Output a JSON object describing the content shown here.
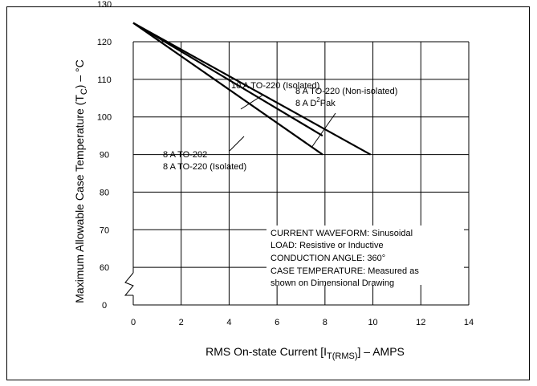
{
  "chart_data": {
    "type": "line",
    "title": "",
    "xlabel": {
      "prefix": "RMS On-state Current [I",
      "sub": "T(RMS)",
      "suffix": "] – AMPS"
    },
    "ylabel": {
      "prefix": "Maximum Allowable Case Temperature (T",
      "sub": "C",
      "suffix": ") – °C"
    },
    "xlim": [
      0,
      14
    ],
    "x_ticks": [
      "0",
      "2",
      "4",
      "6",
      "8",
      "10",
      "12",
      "14"
    ],
    "y_ticks": [
      "0",
      "60",
      "70",
      "80",
      "90",
      "100",
      "110",
      "120",
      "130"
    ],
    "y_axis_break": true,
    "grid": true,
    "series": [
      {
        "name": "10 A TO-220 (Isolated)",
        "points": [
          [
            0,
            125
          ],
          [
            9.9,
            90
          ]
        ]
      },
      {
        "name": "8 A TO-220 (Non-isolated) / 8 A D²Pak",
        "points": [
          [
            0,
            125
          ],
          [
            7.9,
            95
          ]
        ]
      },
      {
        "name": "8 A TO-202 / 8 A TO-220 (Isolated)",
        "points": [
          [
            0,
            125
          ],
          [
            7.9,
            90
          ]
        ]
      }
    ],
    "annotations": {
      "s10_label": "10 A TO-220 (Isolated)",
      "s8n_label_1": "8 A TO-220 (Non-isolated)",
      "s8n_label_2a": "8 A D",
      "s8n_label_2sup": "2",
      "s8n_label_2b": "Pak",
      "s8i_label_1": "8 A TO-202",
      "s8i_label_2": "8 A TO-220 (Isolated)",
      "conditions": [
        "CURRENT WAVEFORM: Sinusoidal",
        "LOAD: Resistive or Inductive",
        "CONDUCTION ANGLE: 360°",
        "CASE TEMPERATURE: Measured as",
        "shown on Dimensional Drawing"
      ]
    }
  }
}
